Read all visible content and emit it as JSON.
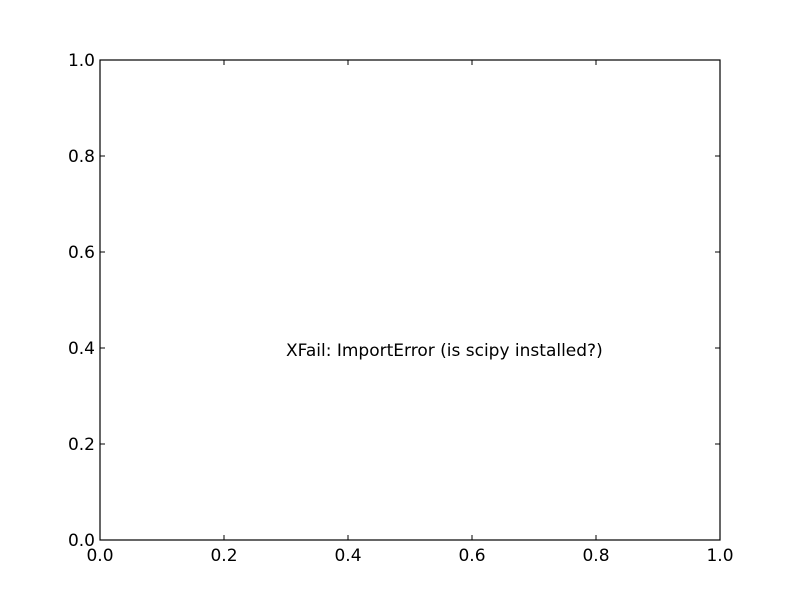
{
  "chart_data": {
    "type": "scatter",
    "title": "",
    "xlabel": "",
    "ylabel": "",
    "xlim": [
      0.0,
      1.0
    ],
    "ylim": [
      0.0,
      1.0
    ],
    "grid": false,
    "series": [],
    "x_ticks": [
      {
        "value": 0.0,
        "label": "0.0"
      },
      {
        "value": 0.2,
        "label": "0.2"
      },
      {
        "value": 0.4,
        "label": "0.4"
      },
      {
        "value": 0.6,
        "label": "0.6"
      },
      {
        "value": 0.8,
        "label": "0.8"
      },
      {
        "value": 1.0,
        "label": "1.0"
      }
    ],
    "y_ticks": [
      {
        "value": 0.0,
        "label": "0.0"
      },
      {
        "value": 0.2,
        "label": "0.2"
      },
      {
        "value": 0.4,
        "label": "0.4"
      },
      {
        "value": 0.6,
        "label": "0.6"
      },
      {
        "value": 0.8,
        "label": "0.8"
      },
      {
        "value": 1.0,
        "label": "1.0"
      }
    ],
    "annotations": [
      {
        "text": "XFail: ImportError (is scipy installed?)",
        "x": 0.3,
        "y": 0.4
      }
    ]
  }
}
